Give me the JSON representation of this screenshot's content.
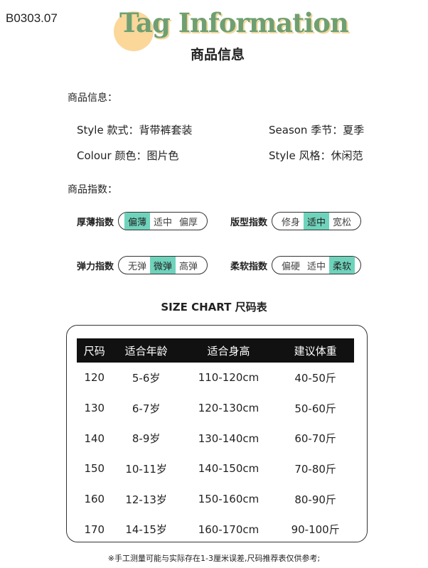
{
  "code": "B0303.07",
  "title": "Tag Information",
  "subtitle": "商品信息",
  "info_heading": "商品信息：",
  "info": [
    {
      "label": "Style 款式：",
      "value": "背带裤套装"
    },
    {
      "label": "Season 季节：",
      "value": "夏季"
    },
    {
      "label": "Colour 颜色：",
      "value": "图片色"
    },
    {
      "label": "Style 风格：",
      "value": "休闲范"
    }
  ],
  "index_heading": "商品指数：",
  "indices": [
    {
      "label": "厚薄指数",
      "options": [
        "偏薄",
        "适中",
        "偏厚"
      ],
      "selected": 0
    },
    {
      "label": "版型指数",
      "options": [
        "修身",
        "适中",
        "宽松"
      ],
      "selected": 1
    },
    {
      "label": "弹力指数",
      "options": [
        "无弹",
        "微弹",
        "高弹"
      ],
      "selected": 1
    },
    {
      "label": "柔软指数",
      "options": [
        "偏硬",
        "适中",
        "柔软"
      ],
      "selected": 2
    }
  ],
  "size_chart_title": "SIZE CHART 尺码表",
  "table": {
    "headers": [
      "尺码",
      "适合年龄",
      "适合身高",
      "建议体重"
    ],
    "rows": [
      [
        "120",
        "5-6岁",
        "110-120cm",
        "40-50斤"
      ],
      [
        "130",
        "6-7岁",
        "120-130cm",
        "50-60斤"
      ],
      [
        "140",
        "8-9岁",
        "130-140cm",
        "60-70斤"
      ],
      [
        "150",
        "10-11岁",
        "140-150cm",
        "70-80斤"
      ],
      [
        "160",
        "12-13岁",
        "150-160cm",
        "80-90斤"
      ],
      [
        "170",
        "14-15岁",
        "160-170cm",
        "90-100斤"
      ]
    ]
  },
  "note": "※手工测量可能与实际存在1-3厘米误差,尺码推荐表仅供参考;",
  "colors": {
    "accent": "#6fd3bc",
    "title": "#6f9f72",
    "circle": "#fbd79a"
  }
}
